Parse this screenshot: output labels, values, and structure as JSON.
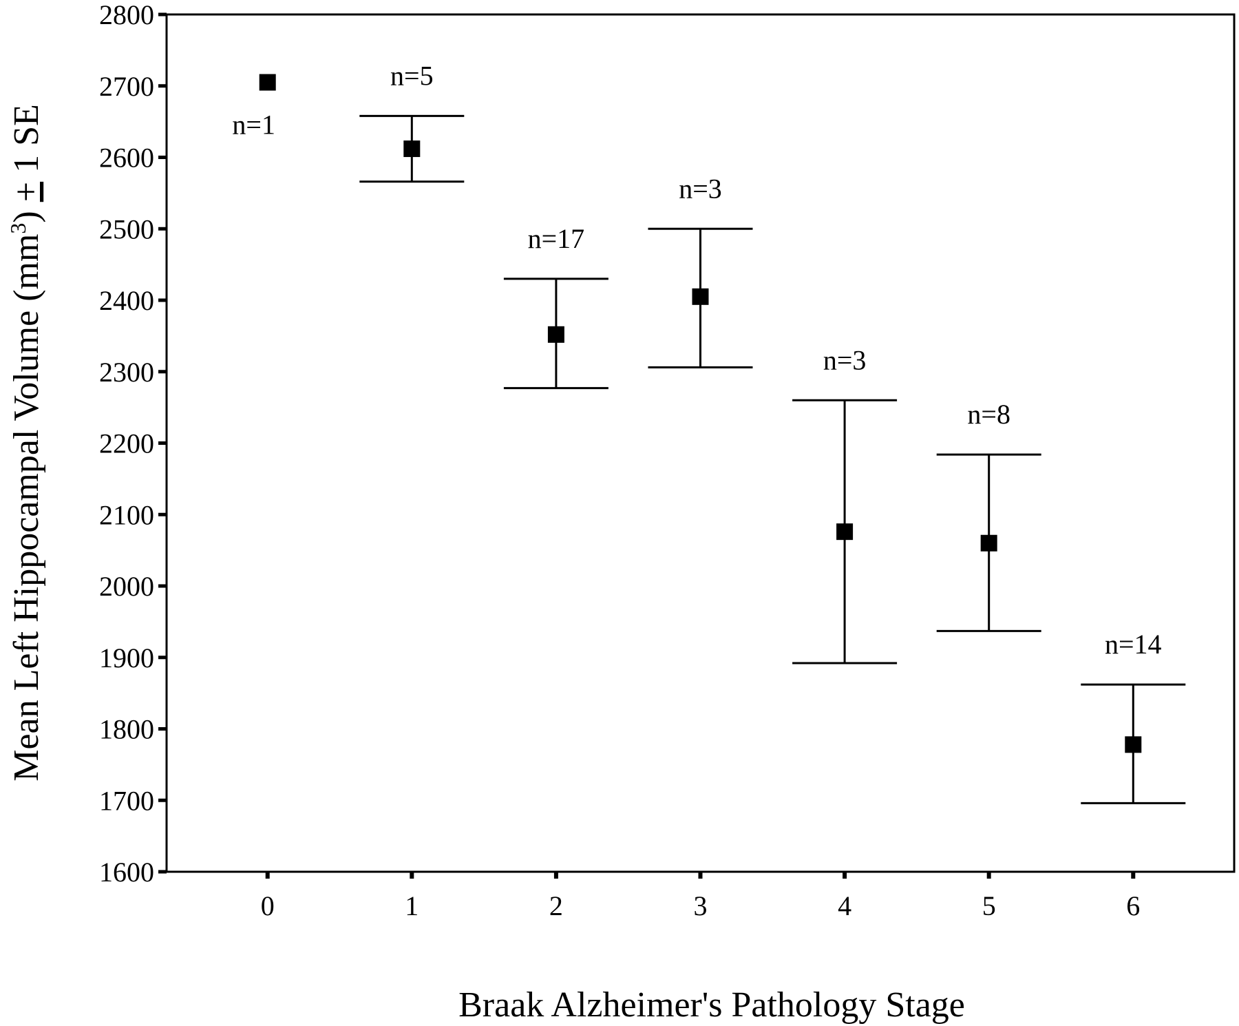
{
  "chart_data": {
    "type": "scatter",
    "xlabel": "Braak Alzheimer's Pathology Stage",
    "ylabel": "Mean Left Hippocampal Volume (mm",
    "ylabel_sup": "3",
    "ylabel_suffix": ") ",
    "ylabel_pm": "+",
    "ylabel_end": " 1 SE",
    "ylim": [
      1600,
      2800
    ],
    "xlim": [
      -0.7,
      6.7
    ],
    "yticks": [
      1600,
      1700,
      1800,
      1900,
      2000,
      2100,
      2200,
      2300,
      2400,
      2500,
      2600,
      2700,
      2800
    ],
    "categories": [
      "0",
      "1",
      "2",
      "3",
      "4",
      "5",
      "6"
    ],
    "series": [
      {
        "points": [
          {
            "x": 0,
            "mean": 2705,
            "upper": null,
            "lower": null,
            "n_label": "n=1"
          },
          {
            "x": 1,
            "mean": 2612,
            "upper": 2658,
            "lower": 2566,
            "n_label": "n=5"
          },
          {
            "x": 2,
            "mean": 2352,
            "upper": 2430,
            "lower": 2277,
            "n_label": "n=17"
          },
          {
            "x": 3,
            "mean": 2405,
            "upper": 2500,
            "lower": 2306,
            "n_label": "n=3"
          },
          {
            "x": 4,
            "mean": 2076,
            "upper": 2260,
            "lower": 1892,
            "n_label": "n=3"
          },
          {
            "x": 5,
            "mean": 2060,
            "upper": 2184,
            "lower": 1937,
            "n_label": "n=8"
          },
          {
            "x": 6,
            "mean": 1778,
            "upper": 1862,
            "lower": 1696,
            "n_label": "n=14"
          }
        ]
      }
    ],
    "grid": false,
    "marker": "square",
    "color": "#000000"
  }
}
